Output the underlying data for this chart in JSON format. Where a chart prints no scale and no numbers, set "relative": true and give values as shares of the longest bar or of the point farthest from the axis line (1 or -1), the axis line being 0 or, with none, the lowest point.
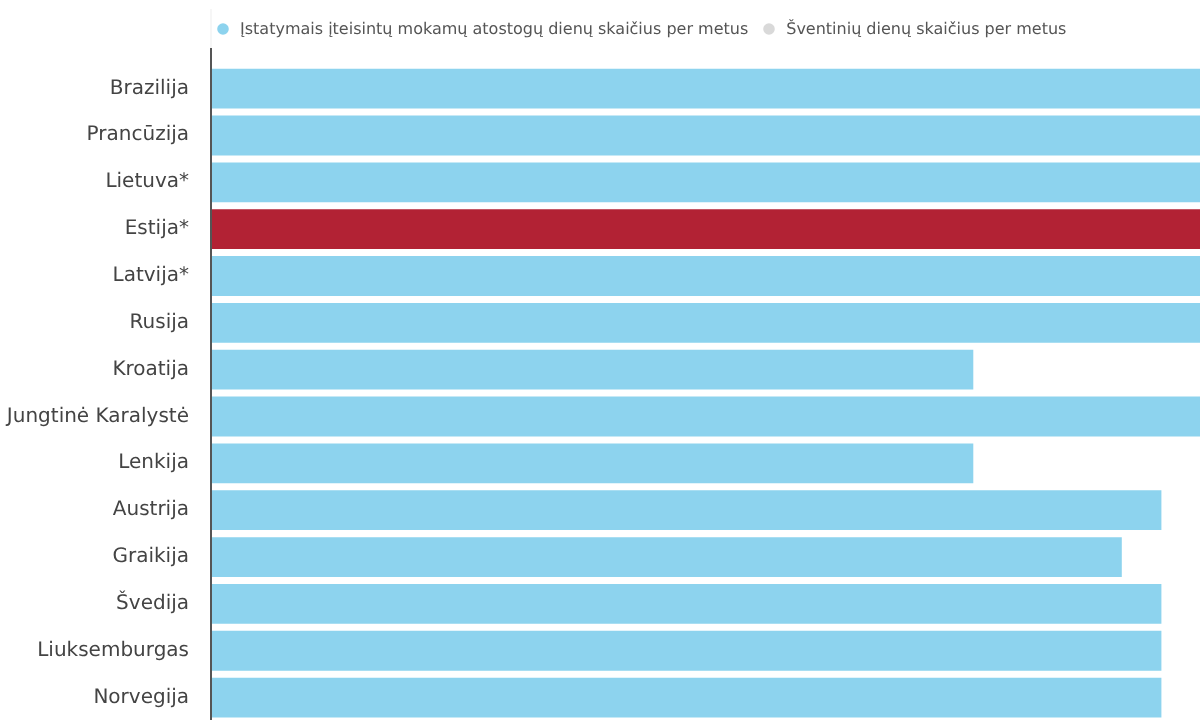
{
  "chart_data": {
    "type": "bar",
    "orientation": "horizontal",
    "relative": true,
    "categories": [
      "Brazilija",
      "Prancūzija",
      "Lietuva*",
      "Estija*",
      "Latvija*",
      "Rusija",
      "Kroatija",
      "Jungtinė Karalystė",
      "Lenkija",
      "Austrija",
      "Graikija",
      "Švedija",
      "Liuksemburgas",
      "Norvegija"
    ],
    "series": [
      {
        "name": "Įstatymais įteisintų mokamų atostogų dienų skaičius per metus",
        "color": "#8dd3ee",
        "colors": [
          "#8dd3ee",
          "#8dd3ee",
          "#8dd3ee",
          "#b22234",
          "#8dd3ee",
          "#8dd3ee",
          "#8dd3ee",
          "#8dd3ee",
          "#8dd3ee",
          "#8dd3ee",
          "#8dd3ee",
          "#8dd3ee",
          "#8dd3ee",
          "#8dd3ee"
        ],
        "values": [
          1,
          1,
          1,
          1,
          1,
          1,
          0.77,
          1,
          0.77,
          0.96,
          0.92,
          0.96,
          0.96,
          0.96
        ]
      },
      {
        "name": "Šventinių dienų skaičius per metus",
        "color": "#d9d9d9",
        "values": [
          null,
          null,
          null,
          null,
          null,
          null,
          null,
          null,
          null,
          null,
          null,
          null,
          null,
          null
        ]
      }
    ],
    "legend": "top",
    "grid": false
  }
}
